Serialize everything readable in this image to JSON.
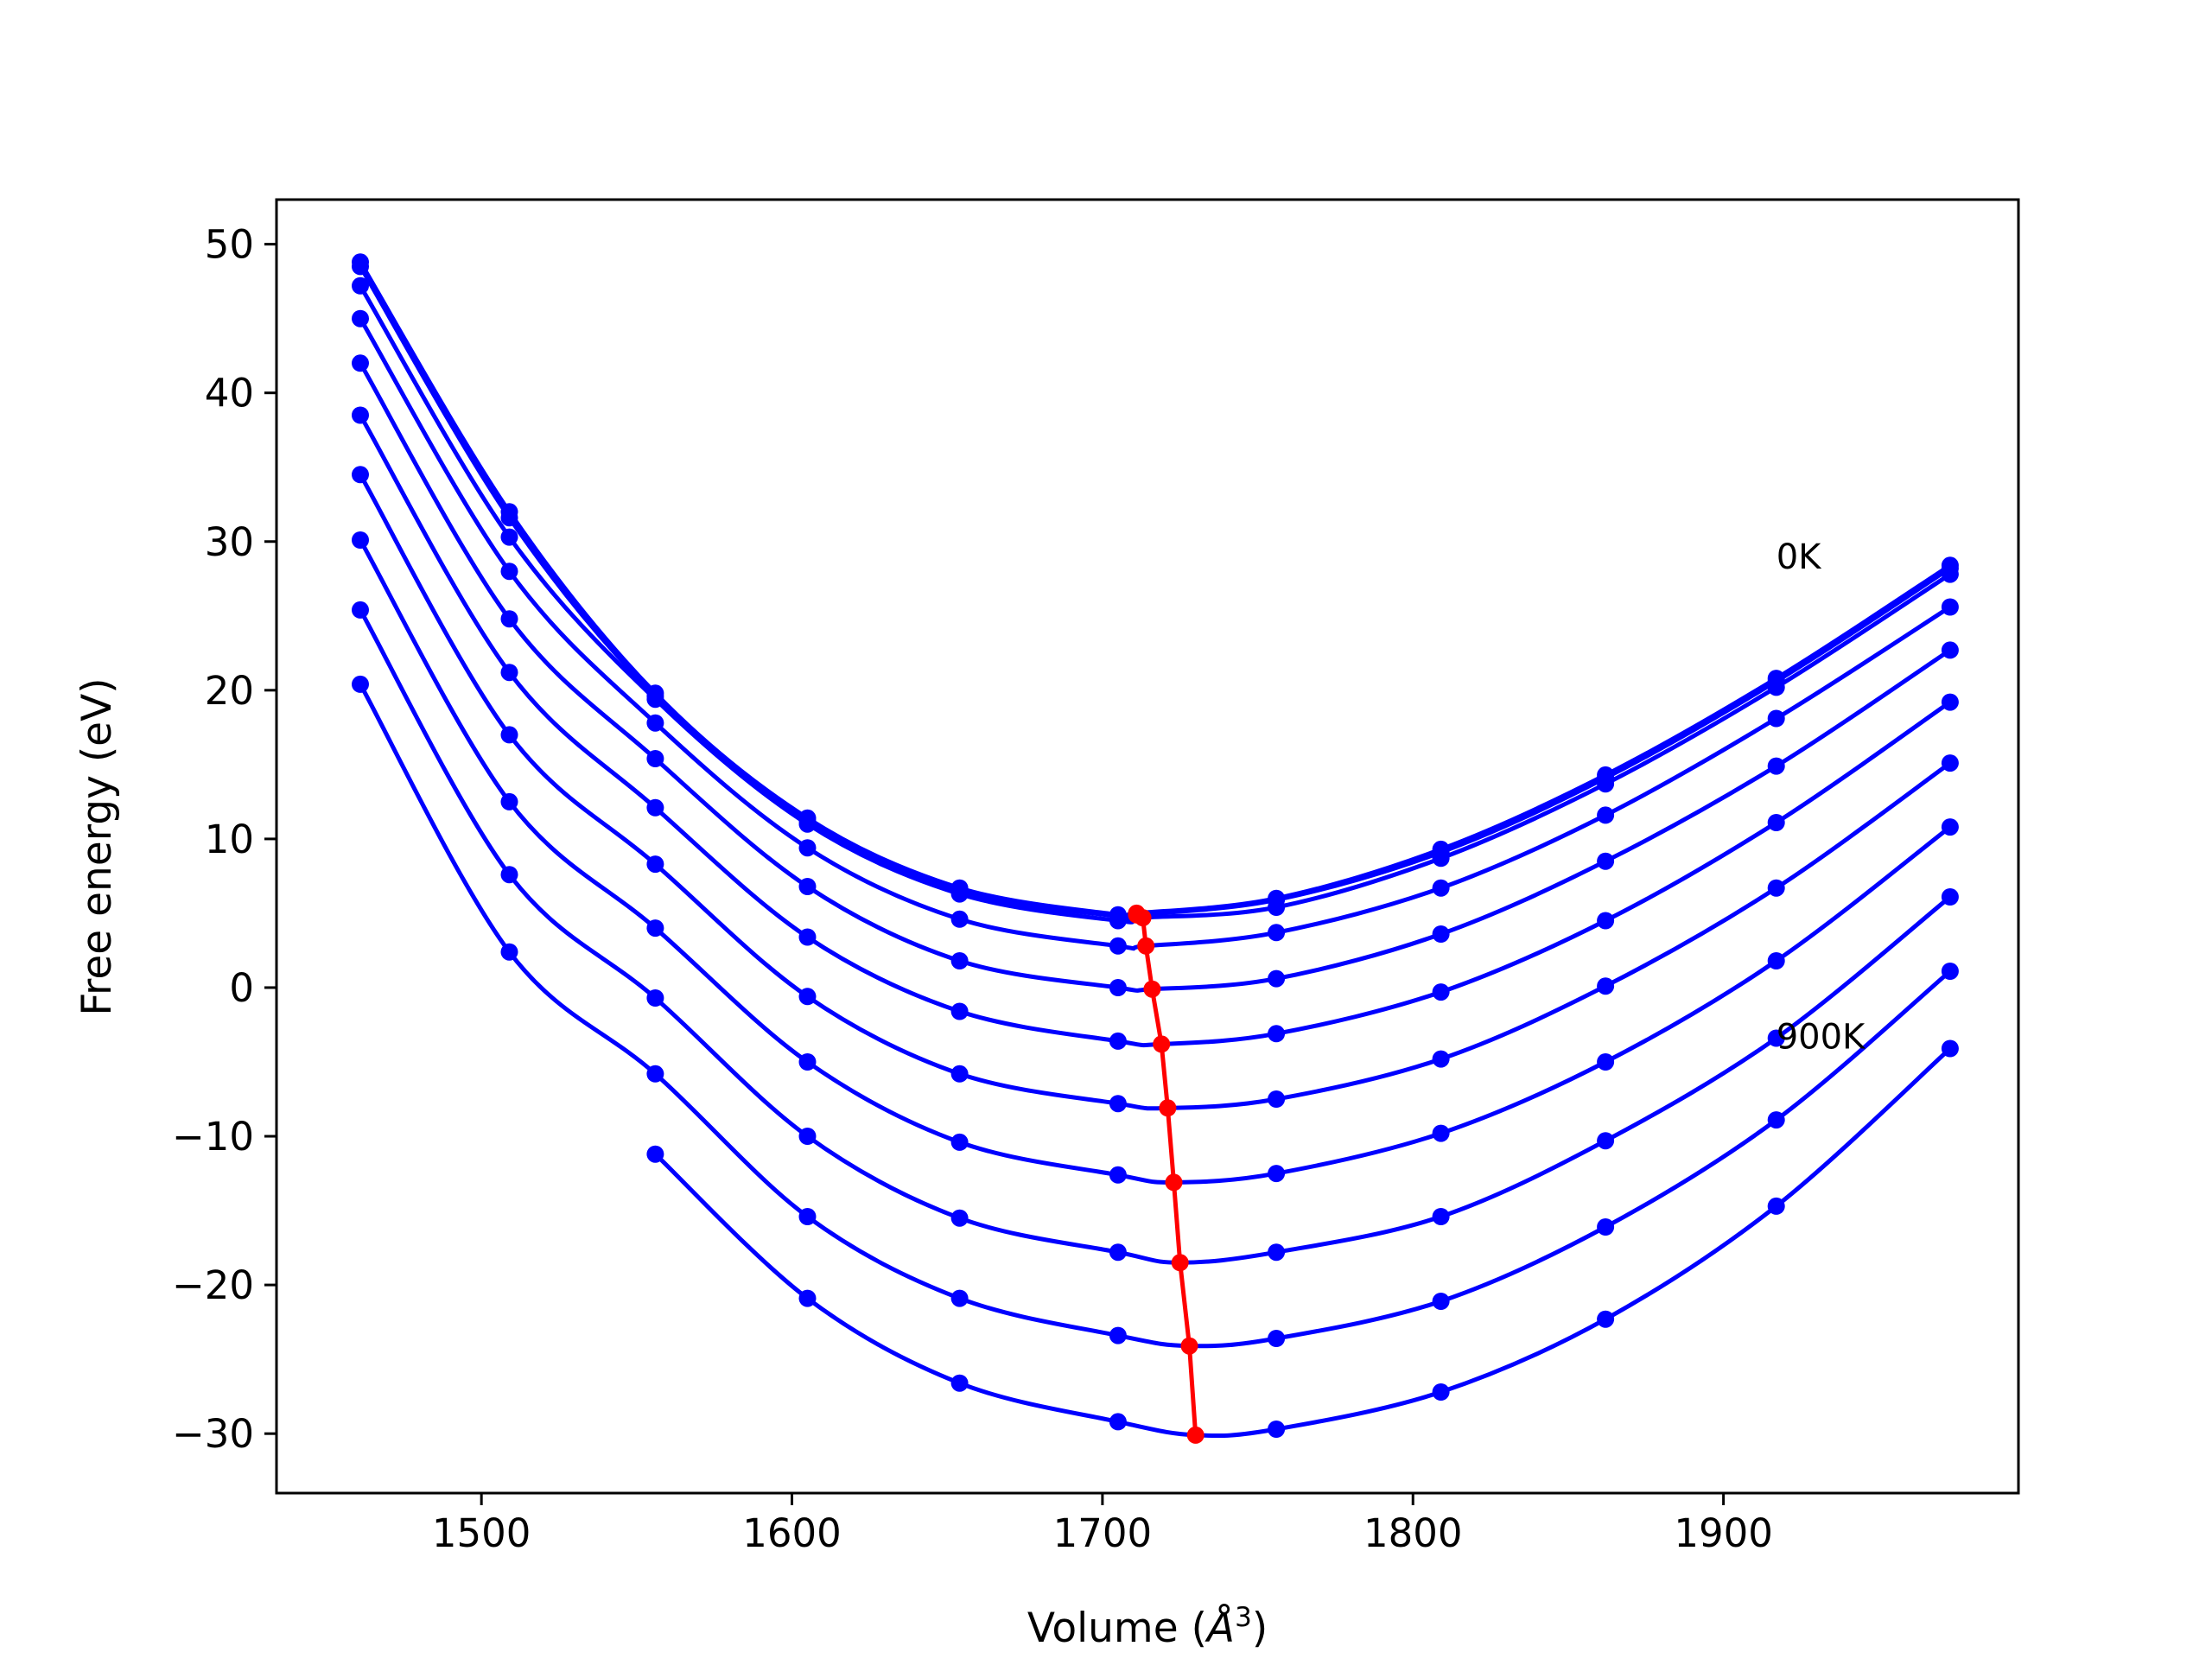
{
  "chart_data": {
    "type": "line",
    "title": "",
    "xlabel": "Volume (",
    "xlabel_symbol": "Å",
    "xlabel_exponent": "3",
    "xlabel_suffix": ")",
    "ylabel": "Free energy (eV)",
    "xlim": [
      1434,
      1995
    ],
    "ylim": [
      -34,
      53
    ],
    "xticks": [
      1500,
      1600,
      1700,
      1800,
      1900
    ],
    "yticks": [
      -30,
      -20,
      -10,
      0,
      10,
      20,
      30,
      40,
      50
    ],
    "grid": false,
    "legend": "none",
    "annotations": [
      {
        "text": "0K",
        "x": 1917,
        "y": 29
      },
      {
        "text": "900K",
        "x": 1917,
        "y": -3.3
      }
    ],
    "colors": {
      "isotherms": "#0000ff",
      "minimum_path": "#ff0000",
      "axes": "#000000"
    },
    "x": [
      1461,
      1509,
      1556,
      1605,
      1654,
      1705,
      1756,
      1809,
      1862,
      1917,
      1973
    ],
    "series": [
      {
        "values": [
          48.8,
          32.0,
          19.8,
          11.4,
          6.7,
          4.9,
          6.0,
          9.3,
          14.3,
          20.8,
          28.4
        ],
        "minimum": [
          1711,
          5.0
        ]
      },
      {
        "values": [
          48.5,
          31.6,
          19.6,
          11.2,
          6.5,
          4.8,
          5.9,
          9.1,
          14.1,
          20.6,
          28.2
        ],
        "minimum": [
          1711,
          4.9
        ]
      },
      {
        "values": [
          47.2,
          30.3,
          19.4,
          11.0,
          6.3,
          4.5,
          5.4,
          8.7,
          13.7,
          20.2,
          27.8
        ],
        "minimum": [
          1713,
          4.7
        ]
      },
      {
        "values": [
          45.0,
          28.0,
          17.8,
          9.4,
          4.6,
          2.8,
          3.7,
          6.7,
          11.6,
          18.1,
          25.6
        ],
        "minimum": [
          1714,
          2.8
        ]
      },
      {
        "values": [
          42.0,
          24.8,
          15.4,
          6.8,
          1.8,
          0.0,
          0.6,
          3.6,
          8.5,
          14.9,
          22.7
        ],
        "minimum": [
          1716,
          -0.1
        ]
      },
      {
        "values": [
          38.5,
          21.2,
          12.1,
          3.4,
          -1.6,
          -3.6,
          -3.1,
          -0.3,
          4.5,
          11.1,
          19.2
        ],
        "minimum": [
          1719,
          -3.8
        ]
      },
      {
        "values": [
          34.5,
          17.0,
          8.3,
          -0.6,
          -5.8,
          -7.8,
          -7.5,
          -4.8,
          0.1,
          6.7,
          15.1
        ],
        "minimum": [
          1721,
          -8.1
        ]
      },
      {
        "values": [
          30.1,
          12.5,
          4.0,
          -5.0,
          -10.4,
          -12.6,
          -12.5,
          -9.8,
          -5.0,
          1.8,
          10.8
        ],
        "minimum": [
          1723,
          -13.1
        ]
      },
      {
        "values": [
          25.4,
          7.6,
          -0.7,
          -10.0,
          -15.5,
          -17.8,
          -17.8,
          -15.4,
          -10.3,
          -3.4,
          6.1
        ],
        "minimum": [
          1725,
          -18.5
        ]
      },
      {
        "values": [
          20.4,
          2.4,
          -5.8,
          -15.4,
          -20.9,
          -23.4,
          -23.6,
          -21.1,
          -16.1,
          -8.9,
          1.1
        ],
        "minimum": [
          1728,
          -24.1
        ]
      },
      {
        "values": [
          null,
          null,
          -11.2,
          -20.9,
          -26.6,
          -29.2,
          -29.7,
          -27.2,
          -22.3,
          -14.7,
          -4.1
        ],
        "minimum": [
          1730,
          -30.1
        ]
      }
    ],
    "minimum_path": {
      "x": [
        1711,
        1711,
        1713,
        1714,
        1716,
        1719,
        1721,
        1723,
        1725,
        1728,
        1730
      ],
      "y": [
        5.0,
        4.9,
        4.7,
        2.8,
        -0.1,
        -3.8,
        -8.1,
        -13.1,
        -18.5,
        -24.1,
        -30.1
      ]
    }
  }
}
